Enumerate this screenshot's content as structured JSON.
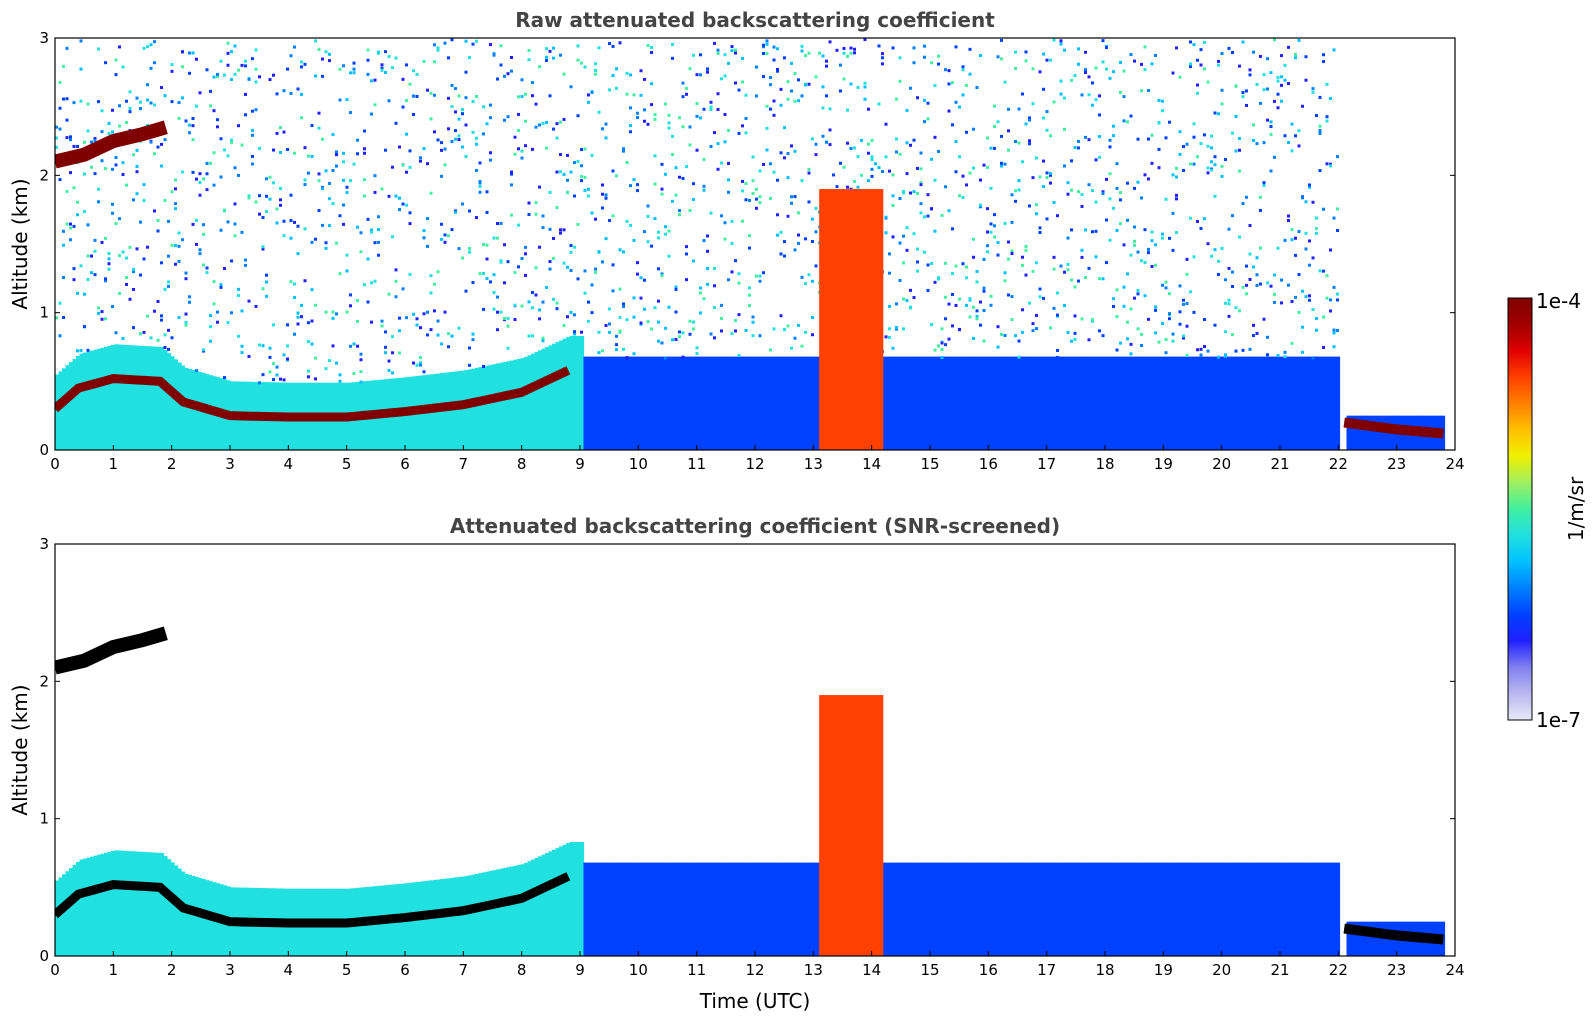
{
  "chart_data": [
    {
      "type": "heatmap",
      "title": "Raw attenuated backscattering coefficient",
      "xlabel": "",
      "ylabel": "Altitude (km)",
      "xlim": [
        0,
        24
      ],
      "ylim": [
        0,
        3
      ],
      "xticks": [
        "0",
        "1",
        "2",
        "3",
        "4",
        "5",
        "6",
        "7",
        "8",
        "9",
        "10",
        "11",
        "12",
        "13",
        "14",
        "15",
        "16",
        "17",
        "18",
        "19",
        "20",
        "21",
        "22",
        "23",
        "24"
      ],
      "yticks": [
        "0",
        "1",
        "2",
        "3"
      ],
      "features": [
        {
          "name": "boundary-layer top",
          "times": [
            0,
            0.4,
            1,
            1.8,
            2.2,
            3,
            4,
            5,
            6,
            7,
            8,
            8.8
          ],
          "heights": [
            0.3,
            0.45,
            0.52,
            0.5,
            0.35,
            0.25,
            0.24,
            0.24,
            0.28,
            0.33,
            0.42,
            0.58
          ]
        },
        {
          "name": "early cloud layer",
          "times": [
            0,
            0.5,
            1,
            1.5,
            1.9
          ],
          "heights": [
            2.1,
            2.15,
            2.25,
            2.3,
            2.35
          ]
        },
        {
          "name": "late boundary layer",
          "times": [
            22.1,
            23,
            23.8
          ],
          "heights": [
            0.2,
            0.15,
            0.12
          ]
        },
        {
          "name": "thick cloud column",
          "times": [
            13.1,
            14.2
          ],
          "heights": [
            0,
            1.9
          ]
        }
      ]
    },
    {
      "type": "heatmap",
      "title": "Attenuated backscattering coefficient (SNR-screened)",
      "xlabel": "Time (UTC)",
      "ylabel": "Altitude (km)",
      "xlim": [
        0,
        24
      ],
      "ylim": [
        0,
        3
      ],
      "xticks": [
        "0",
        "1",
        "2",
        "3",
        "4",
        "5",
        "6",
        "7",
        "8",
        "9",
        "10",
        "11",
        "12",
        "13",
        "14",
        "15",
        "16",
        "17",
        "18",
        "19",
        "20",
        "21",
        "22",
        "23",
        "24"
      ],
      "yticks": [
        "0",
        "1",
        "2",
        "3"
      ],
      "features": [
        {
          "name": "boundary-layer top",
          "times": [
            0,
            0.4,
            1,
            1.8,
            2.2,
            3,
            4,
            5,
            6,
            7,
            8,
            8.8
          ],
          "heights": [
            0.3,
            0.45,
            0.52,
            0.5,
            0.35,
            0.25,
            0.24,
            0.24,
            0.28,
            0.33,
            0.42,
            0.58
          ]
        },
        {
          "name": "early cloud layer",
          "times": [
            0,
            0.5,
            1,
            1.5,
            1.9
          ],
          "heights": [
            2.1,
            2.15,
            2.25,
            2.3,
            2.35
          ]
        },
        {
          "name": "late boundary layer",
          "times": [
            22.1,
            23,
            23.8
          ],
          "heights": [
            0.2,
            0.15,
            0.12
          ]
        },
        {
          "name": "thick cloud column",
          "times": [
            13.1,
            14.2
          ],
          "heights": [
            0,
            1.9
          ]
        }
      ]
    }
  ],
  "colorbar": {
    "max_label": "1e-4",
    "min_label": "1e-7",
    "unit_label": "1/m/sr",
    "colors": [
      "#e8e8f8",
      "#b8b8f0",
      "#8080f0",
      "#2020ff",
      "#0040ff",
      "#0080ff",
      "#00c0ff",
      "#20e0e0",
      "#40f0a0",
      "#a0f060",
      "#f0f000",
      "#ffc000",
      "#ff8000",
      "#ff4000",
      "#e00000",
      "#a00000",
      "#800000"
    ]
  }
}
